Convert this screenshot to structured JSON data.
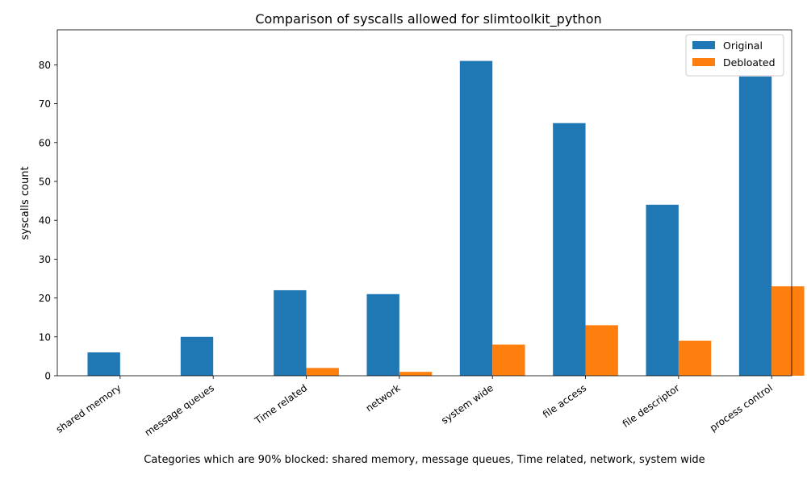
{
  "chart_data": {
    "type": "bar",
    "title": "Comparison of syscalls allowed for slimtoolkit_python",
    "xlabel": "Categories which are 90% blocked: shared memory, message queues, Time related, network, system wide",
    "ylabel": "syscalls count",
    "categories": [
      "shared memory",
      "message queues",
      "Time related",
      "network",
      "system wide",
      "file access",
      "file descriptor",
      "process control"
    ],
    "series": [
      {
        "name": "Original",
        "color": "#1f77b4",
        "values": [
          6,
          10,
          22,
          21,
          81,
          65,
          44,
          77
        ]
      },
      {
        "name": "Debloated",
        "color": "#ff7f0e",
        "values": [
          0,
          0,
          2,
          1,
          8,
          13,
          9,
          23
        ]
      }
    ],
    "ylim": [
      0,
      89
    ],
    "yticks": [
      0,
      10,
      20,
      30,
      40,
      50,
      60,
      70,
      80
    ],
    "grid": false,
    "legend_position": "top-right"
  }
}
